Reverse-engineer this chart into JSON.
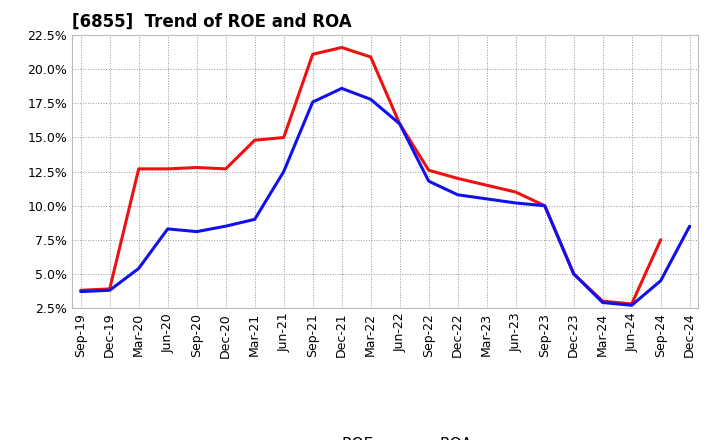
{
  "title": "[6855]  Trend of ROE and ROA",
  "x_labels": [
    "Sep-19",
    "Dec-19",
    "Mar-20",
    "Jun-20",
    "Sep-20",
    "Dec-20",
    "Mar-21",
    "Jun-21",
    "Sep-21",
    "Dec-21",
    "Mar-22",
    "Jun-22",
    "Sep-22",
    "Dec-22",
    "Mar-23",
    "Jun-23",
    "Sep-23",
    "Dec-23",
    "Mar-24",
    "Jun-24",
    "Sep-24",
    "Dec-24"
  ],
  "roe": [
    3.8,
    3.9,
    12.7,
    12.7,
    12.8,
    12.7,
    14.8,
    15.0,
    21.1,
    21.6,
    20.9,
    16.0,
    12.6,
    12.0,
    11.5,
    11.0,
    10.0,
    5.0,
    3.0,
    2.8,
    7.5,
    null
  ],
  "roa": [
    3.7,
    3.8,
    5.4,
    8.3,
    8.1,
    8.5,
    9.0,
    12.5,
    17.6,
    18.6,
    17.8,
    16.0,
    11.8,
    10.8,
    10.5,
    10.2,
    10.0,
    5.0,
    2.9,
    2.7,
    4.5,
    8.5
  ],
  "ylim": [
    2.5,
    22.5
  ],
  "yticks": [
    2.5,
    5.0,
    7.5,
    10.0,
    12.5,
    15.0,
    17.5,
    20.0,
    22.5
  ],
  "roe_color": "#ee1111",
  "roa_color": "#1111ee",
  "bg_color": "#ffffff",
  "plot_bg_color": "#ffffff",
  "grid_color": "#999999",
  "line_width": 2.2,
  "tick_fontsize": 9,
  "title_fontsize": 12
}
